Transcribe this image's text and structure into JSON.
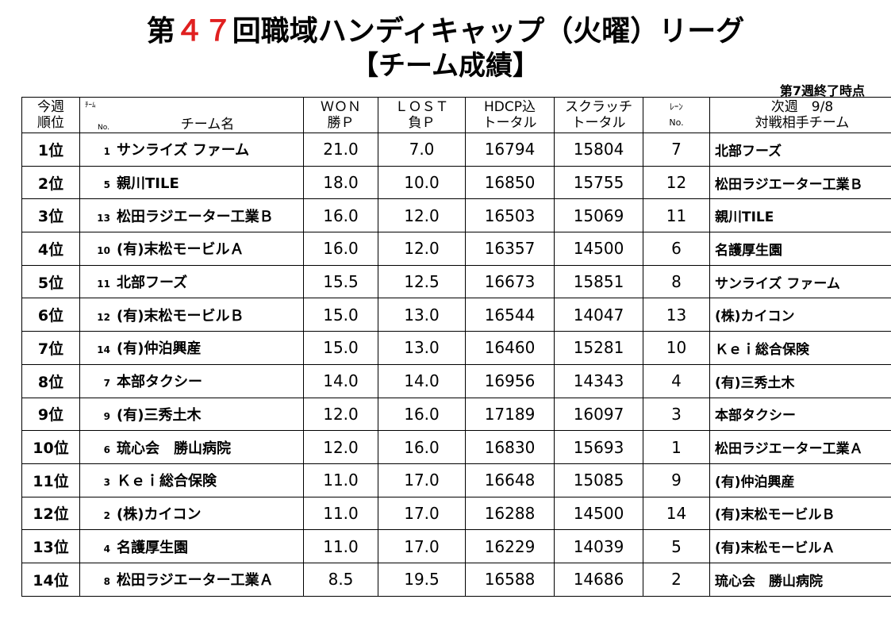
{
  "title": {
    "prefix": "第",
    "number": "４７",
    "suffix": "回職域ハンディキャップ（火曜）リーグ"
  },
  "subtitle": "【チーム成績】",
  "status": "第7週終了時点",
  "headers": {
    "rank_line1": "今週",
    "rank_line2": "順位",
    "team_small": "ﾁｰﾑ",
    "team_no": "No.",
    "team_name": "チーム名",
    "won_line1": "ＷＯＮ",
    "won_line2": "勝Ｐ",
    "lost_line1": "ＬＯＳＴ",
    "lost_line2": "負Ｐ",
    "hdcp_line1": "HDCP込",
    "hdcp_line2": "トータル",
    "scratch_line1": "スクラッチ",
    "scratch_line2": "トータル",
    "lane_line1": "ﾚｰﾝ",
    "lane_line2": "No.",
    "opp_line1": "次週　9/8",
    "opp_line2": "対戦相手チーム"
  },
  "rows": [
    {
      "rank": "1位",
      "no": "1",
      "team": "サンライズ ファーム",
      "won": "21.0",
      "lost": "7.0",
      "hdcp": "16794",
      "scratch": "15804",
      "lane": "7",
      "opponent": "北部フーズ"
    },
    {
      "rank": "2位",
      "no": "5",
      "team": "親川TILE",
      "won": "18.0",
      "lost": "10.0",
      "hdcp": "16850",
      "scratch": "15755",
      "lane": "12",
      "opponent": "松田ラジエーター工業Ｂ"
    },
    {
      "rank": "3位",
      "no": "13",
      "team": "松田ラジエーター工業Ｂ",
      "won": "16.0",
      "lost": "12.0",
      "hdcp": "16503",
      "scratch": "15069",
      "lane": "11",
      "opponent": "親川TILE"
    },
    {
      "rank": "4位",
      "no": "10",
      "team": "(有)末松モービルＡ",
      "won": "16.0",
      "lost": "12.0",
      "hdcp": "16357",
      "scratch": "14500",
      "lane": "6",
      "opponent": "名護厚生園"
    },
    {
      "rank": "5位",
      "no": "11",
      "team": "北部フーズ",
      "won": "15.5",
      "lost": "12.5",
      "hdcp": "16673",
      "scratch": "15851",
      "lane": "8",
      "opponent": "サンライズ ファーム"
    },
    {
      "rank": "6位",
      "no": "12",
      "team": "(有)末松モービルＢ",
      "won": "15.0",
      "lost": "13.0",
      "hdcp": "16544",
      "scratch": "14047",
      "lane": "13",
      "opponent": "(株)カイコン"
    },
    {
      "rank": "7位",
      "no": "14",
      "team": "(有)仲泊興産",
      "won": "15.0",
      "lost": "13.0",
      "hdcp": "16460",
      "scratch": "15281",
      "lane": "10",
      "opponent": "Ｋｅｉ総合保険"
    },
    {
      "rank": "8位",
      "no": "7",
      "team": "本部タクシー",
      "won": "14.0",
      "lost": "14.0",
      "hdcp": "16956",
      "scratch": "14343",
      "lane": "4",
      "opponent": "(有)三秀土木"
    },
    {
      "rank": "9位",
      "no": "9",
      "team": "(有)三秀土木",
      "won": "12.0",
      "lost": "16.0",
      "hdcp": "17189",
      "scratch": "16097",
      "lane": "3",
      "opponent": "本部タクシー"
    },
    {
      "rank": "10位",
      "no": "6",
      "team": "琉心会　勝山病院",
      "won": "12.0",
      "lost": "16.0",
      "hdcp": "16830",
      "scratch": "15693",
      "lane": "1",
      "opponent": "松田ラジエーター工業Ａ"
    },
    {
      "rank": "11位",
      "no": "3",
      "team": "Ｋｅｉ総合保険",
      "won": "11.0",
      "lost": "17.0",
      "hdcp": "16648",
      "scratch": "15085",
      "lane": "9",
      "opponent": "(有)仲泊興産"
    },
    {
      "rank": "12位",
      "no": "2",
      "team": "(株)カイコン",
      "won": "11.0",
      "lost": "17.0",
      "hdcp": "16288",
      "scratch": "14500",
      "lane": "14",
      "opponent": "(有)末松モービルＢ"
    },
    {
      "rank": "13位",
      "no": "4",
      "team": "名護厚生園",
      "won": "11.0",
      "lost": "17.0",
      "hdcp": "16229",
      "scratch": "14039",
      "lane": "5",
      "opponent": "(有)末松モービルＡ"
    },
    {
      "rank": "14位",
      "no": "8",
      "team": "松田ラジエーター工業Ａ",
      "won": "8.5",
      "lost": "19.5",
      "hdcp": "16588",
      "scratch": "14686",
      "lane": "2",
      "opponent": "琉心会　勝山病院"
    }
  ],
  "colors": {
    "title_number": "#e02020",
    "text": "#000000"
  }
}
